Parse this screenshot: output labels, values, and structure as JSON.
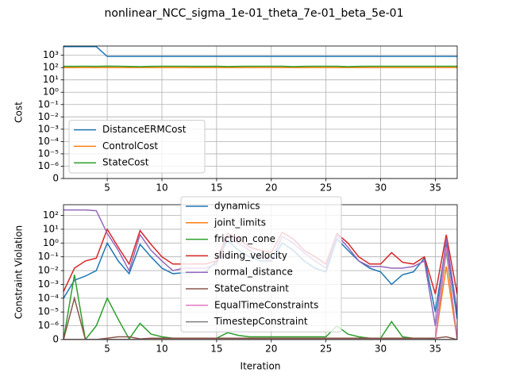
{
  "title": "nonlinear_NCC_sigma_1e-01_theta_7e-01_beta_5e-01",
  "chart_data": [
    {
      "type": "line",
      "ylabel": "Cost",
      "yscale": "symlog",
      "linthresh": 1e-06,
      "grid": true,
      "legend": "lower left",
      "x": [
        1,
        2,
        3,
        4,
        5,
        6,
        7,
        8,
        9,
        10,
        11,
        12,
        13,
        14,
        15,
        16,
        17,
        18,
        19,
        20,
        21,
        22,
        23,
        24,
        25,
        26,
        27,
        28,
        29,
        30,
        31,
        32,
        33,
        34,
        35,
        36,
        37
      ],
      "xlim": [
        1,
        37
      ],
      "xticks": [
        5,
        10,
        15,
        20,
        25,
        30,
        35
      ],
      "ylim": [
        0,
        5600
      ],
      "yticks": [
        0,
        {
          "value": 1e-06,
          "label": "10⁻⁶"
        },
        {
          "value": 1e-05,
          "label": "10⁻⁵"
        },
        {
          "value": 0.0001,
          "label": "10⁻⁴"
        },
        {
          "value": 0.001,
          "label": "10⁻³"
        },
        {
          "value": 0.01,
          "label": "10⁻²"
        },
        {
          "value": 0.1,
          "label": "10⁻¹"
        },
        {
          "value": 1,
          "label": "10⁰"
        },
        {
          "value": 10,
          "label": "10¹"
        },
        {
          "value": 100,
          "label": "10²"
        },
        {
          "value": 1000,
          "label": "10³"
        }
      ],
      "series": [
        {
          "name": "DistanceERMCost",
          "color": "#1f77b4",
          "values": [
            5000,
            5000,
            5000,
            5000,
            800,
            800,
            800,
            800,
            800,
            800,
            800,
            800,
            800,
            800,
            800,
            800,
            800,
            800,
            800,
            800,
            800,
            800,
            800,
            800,
            800,
            800,
            800,
            800,
            800,
            800,
            800,
            800,
            800,
            800,
            800,
            800,
            800
          ]
        },
        {
          "name": "ControlCost",
          "color": "#ff7f0e",
          "values": [
            100,
            100,
            100,
            100,
            100,
            100,
            100,
            100,
            100,
            100,
            100,
            100,
            100,
            100,
            100,
            100,
            100,
            100,
            100,
            100,
            100,
            100,
            100,
            100,
            100,
            100,
            100,
            100,
            100,
            100,
            100,
            100,
            100,
            100,
            100,
            100,
            100
          ]
        },
        {
          "name": "StateCost",
          "color": "#2ca02c",
          "values": [
            125,
            125,
            128,
            126,
            130,
            128,
            124,
            118,
            126,
            128,
            127,
            127,
            126,
            126,
            127,
            120,
            126,
            127,
            128,
            127,
            127,
            119,
            126,
            128,
            127,
            128,
            118,
            126,
            127,
            127,
            127,
            127,
            127,
            127,
            127,
            127,
            127
          ]
        }
      ]
    },
    {
      "type": "line",
      "xlabel": "Iteration",
      "ylabel": "Constraint Violation",
      "yscale": "symlog",
      "linthresh": 1e-06,
      "grid": true,
      "legend": "upper center",
      "x": [
        1,
        2,
        3,
        4,
        5,
        6,
        7,
        8,
        9,
        10,
        11,
        12,
        13,
        14,
        15,
        16,
        17,
        18,
        19,
        20,
        21,
        22,
        23,
        24,
        25,
        26,
        27,
        28,
        29,
        30,
        31,
        32,
        33,
        34,
        35,
        36,
        37
      ],
      "xlim": [
        1,
        37
      ],
      "xticks": [
        5,
        10,
        15,
        20,
        25,
        30,
        35
      ],
      "ylim": [
        0,
        600
      ],
      "yticks": [
        0,
        {
          "value": 1e-06,
          "label": "10⁻⁶"
        },
        {
          "value": 1e-05,
          "label": "10⁻⁵"
        },
        {
          "value": 0.0001,
          "label": "10⁻⁴"
        },
        {
          "value": 0.001,
          "label": "10⁻³"
        },
        {
          "value": 0.01,
          "label": "10⁻²"
        },
        {
          "value": 0.1,
          "label": "10⁻¹"
        },
        {
          "value": 1,
          "label": "10⁰"
        },
        {
          "value": 10,
          "label": "10¹"
        },
        {
          "value": 100,
          "label": "10²"
        }
      ],
      "series": [
        {
          "name": "dynamics",
          "color": "#1f77b4",
          "values": [
            0.0001,
            0.002,
            0.004,
            0.01,
            1,
            0.05,
            0.006,
            0.8,
            0.1,
            0.015,
            0.006,
            0.007,
            0.007,
            0.008,
            0.05,
            1.5,
            0.3,
            0.1,
            0.05,
            0.05,
            1,
            0.3,
            0.05,
            0.015,
            0.008,
            2,
            0.3,
            0.05,
            0.015,
            0.008,
            0.001,
            0.005,
            0.008,
            0.08,
            1e-05,
            1,
            3e-06
          ]
        },
        {
          "name": "joint_limits",
          "color": "#ff7f0e",
          "values": [
            0,
            0,
            0,
            0,
            0,
            0,
            0,
            0,
            0,
            0,
            0,
            0,
            0,
            0,
            0,
            0,
            0,
            0,
            0,
            0,
            0,
            0,
            0,
            0,
            0,
            0,
            0,
            0,
            0,
            0,
            0,
            0,
            0,
            0,
            0,
            0.02,
            0
          ]
        },
        {
          "name": "friction_cone",
          "color": "#2ca02c",
          "values": [
            0,
            0.005,
            0,
            1e-06,
            0.0001,
            3e-06,
            5e-08,
            1.5e-06,
            4e-07,
            2e-07,
            1e-07,
            1e-07,
            1e-07,
            1e-07,
            1e-07,
            5e-07,
            3e-07,
            2e-07,
            2e-07,
            2e-07,
            2e-07,
            2e-07,
            2e-07,
            2e-07,
            2e-07,
            1e-06,
            4e-07,
            2e-07,
            1e-07,
            1e-07,
            2e-06,
            2e-07,
            1e-07,
            1e-07,
            5e-08,
            0.3,
            0
          ]
        },
        {
          "name": "sliding_velocity",
          "color": "#d62728",
          "values": [
            0.0003,
            0.015,
            0.05,
            0.08,
            10,
            0.5,
            0.03,
            8,
            0.8,
            0.1,
            0.03,
            0.03,
            0.03,
            0.03,
            0.05,
            5,
            2,
            0.5,
            0.3,
            0.2,
            6,
            2,
            0.3,
            0.1,
            0.03,
            5,
            1,
            0.1,
            0.03,
            0.03,
            0.2,
            0.04,
            0.03,
            0.1,
            0.0002,
            4,
            0.0002
          ]
        },
        {
          "name": "normal_distance",
          "color": "#9467bd",
          "values": [
            250,
            250,
            250,
            220,
            5,
            0.3,
            0.01,
            4,
            0.3,
            0.05,
            0.01,
            0.015,
            0.015,
            0.015,
            0.03,
            3,
            1,
            0.3,
            0.1,
            0.05,
            3,
            1,
            0.2,
            0.05,
            0.015,
            4,
            0.5,
            0.05,
            0.02,
            0.02,
            0.015,
            0.015,
            0.02,
            0.05,
            1e-06,
            2,
            1e-05
          ]
        },
        {
          "name": "StateConstraint",
          "color": "#8c564b",
          "values": [
            0,
            0.0001,
            0,
            0,
            1e-07,
            2e-07,
            2e-07,
            5e-08,
            1e-07,
            1e-07,
            1e-07,
            1e-07,
            1e-07,
            1e-07,
            1e-07,
            1e-07,
            1e-07,
            1e-07,
            1e-07,
            1e-07,
            1e-07,
            1e-07,
            1e-07,
            1e-07,
            1e-07,
            1e-07,
            1e-07,
            1e-07,
            1e-07,
            1e-07,
            1e-07,
            1e-07,
            1e-07,
            1e-07,
            1e-07,
            2e-07,
            0
          ]
        },
        {
          "name": "EqualTimeConstraints",
          "color": "#e377c2",
          "values": [
            0,
            0,
            0,
            0,
            0,
            0,
            0,
            0,
            0,
            0,
            0,
            0,
            0,
            0,
            0,
            0,
            0,
            0,
            0,
            0,
            0,
            0,
            0,
            0,
            0,
            0,
            0,
            0,
            0,
            0,
            0,
            0,
            0,
            0,
            0,
            0.5,
            0
          ]
        },
        {
          "name": "TimestepConstraint",
          "color": "#7f7f7f",
          "values": [
            0,
            0,
            0,
            0,
            0,
            0,
            0,
            0,
            0,
            0,
            0,
            0,
            0,
            0,
            0,
            0,
            0,
            0,
            0,
            0,
            0,
            0,
            0,
            0,
            0,
            0,
            0,
            0,
            0,
            0,
            0,
            0,
            0,
            0,
            0,
            0,
            0
          ]
        }
      ]
    }
  ]
}
